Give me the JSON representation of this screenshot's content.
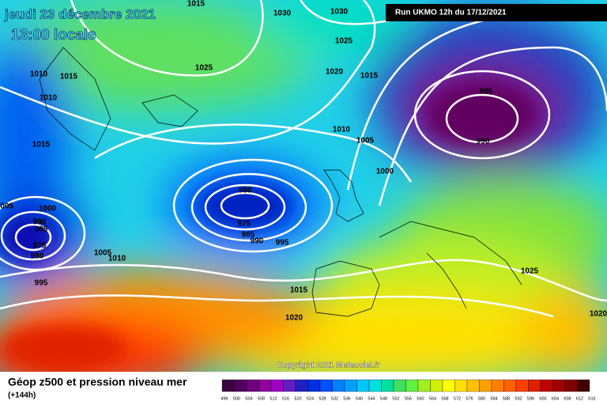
{
  "header": {
    "title": "jeudi 23 décembre 2021",
    "subtitle": "13:00 locale",
    "run": "Run UKMO 12h du 17/12/2021"
  },
  "copyright": "Copyright 2021 Meteociel.fr",
  "footer": {
    "title": "Géop z500 et pression niveau mer",
    "lead": "(+144h)"
  },
  "isobar_labels": [
    "1015",
    "1030",
    "1030",
    "1025",
    "1025",
    "1020",
    "1015",
    "1010",
    "1015",
    "1010",
    "995",
    "990",
    "1010",
    "1005",
    "1000",
    "1015",
    "980",
    "975",
    "985",
    "990",
    "995",
    "1005",
    "1000",
    "990",
    "985",
    "975",
    "980",
    "1005",
    "1010",
    "995",
    "1015",
    "1020",
    "1025",
    "1020"
  ],
  "scale_labels": [
    496,
    500,
    504,
    508,
    512,
    516,
    520,
    524,
    528,
    532,
    536,
    540,
    544,
    548,
    552,
    556,
    560,
    564,
    568,
    572,
    576,
    580,
    584,
    588,
    592,
    596,
    600,
    604,
    608,
    612,
    616
  ]
}
